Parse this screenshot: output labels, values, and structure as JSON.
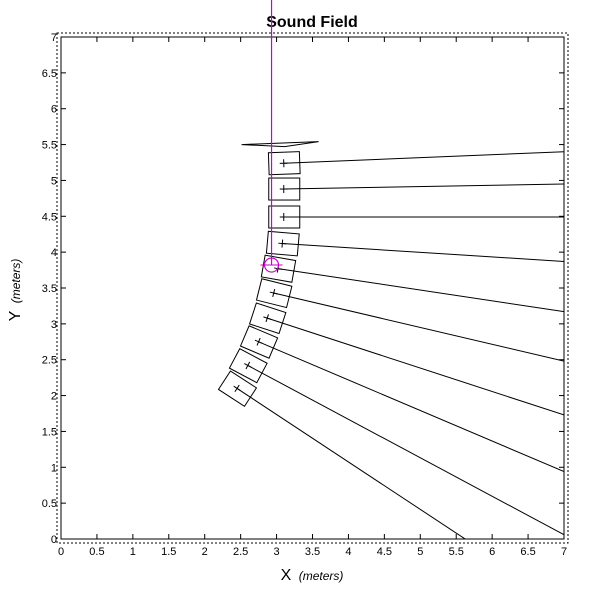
{
  "colors": {
    "background": "#ffffff",
    "axes": "#000000",
    "rays": "#000000",
    "cabinets": "#000000",
    "reference_line": "#cc00cc",
    "reference_marker": "#cc00cc"
  },
  "chart_data": {
    "type": "line",
    "title": "Sound Field",
    "xlabel": "X",
    "xlabel_unit": "(meters)",
    "ylabel": "Y",
    "ylabel_unit": "(meters)",
    "xlim": [
      0,
      7
    ],
    "ylim": [
      0,
      7
    ],
    "xticks": [
      "0",
      "0.5",
      "1",
      "1.5",
      "2",
      "2.5",
      "3",
      "3.5",
      "4",
      "4.5",
      "5",
      "5.5",
      "6",
      "6.5",
      "7"
    ],
    "yticks": [
      "0",
      "0.5",
      "1",
      "1.5",
      "2",
      "2.5",
      "3",
      "3.5",
      "4",
      "4.5",
      "5",
      "5.5",
      "6",
      "6.5",
      "7"
    ],
    "grid": false,
    "legend": "none",
    "array_elements": [
      {
        "x": 3.1,
        "y": 5.24,
        "angle_deg": 2
      },
      {
        "x": 3.1,
        "y": 4.88,
        "angle_deg": 0
      },
      {
        "x": 3.1,
        "y": 4.49,
        "angle_deg": 0
      },
      {
        "x": 3.08,
        "y": 4.12,
        "angle_deg": -5
      },
      {
        "x": 3.02,
        "y": 3.77,
        "angle_deg": -10
      },
      {
        "x": 2.96,
        "y": 3.43,
        "angle_deg": -14
      },
      {
        "x": 2.87,
        "y": 3.08,
        "angle_deg": -18
      },
      {
        "x": 2.75,
        "y": 2.75,
        "angle_deg": -23
      },
      {
        "x": 2.6,
        "y": 2.42,
        "angle_deg": -28
      },
      {
        "x": 2.45,
        "y": 2.1,
        "angle_deg": -33
      }
    ],
    "rays": [
      {
        "x0": 3.1,
        "y0": 5.24,
        "x1": 7.0,
        "y1": 5.4
      },
      {
        "x0": 3.1,
        "y0": 4.88,
        "x1": 7.0,
        "y1": 4.95
      },
      {
        "x0": 3.1,
        "y0": 4.49,
        "x1": 7.0,
        "y1": 4.49
      },
      {
        "x0": 3.08,
        "y0": 4.12,
        "x1": 7.0,
        "y1": 3.87
      },
      {
        "x0": 3.02,
        "y0": 3.77,
        "x1": 7.0,
        "y1": 3.17
      },
      {
        "x0": 2.96,
        "y0": 3.43,
        "x1": 7.0,
        "y1": 2.48
      },
      {
        "x0": 2.87,
        "y0": 3.08,
        "x1": 7.0,
        "y1": 1.73
      },
      {
        "x0": 2.75,
        "y0": 2.75,
        "x1": 7.0,
        "y1": 0.94
      },
      {
        "x0": 2.6,
        "y0": 2.42,
        "x1": 7.0,
        "y1": 0.06
      },
      {
        "x0": 2.45,
        "y0": 2.1,
        "x1": 5.7,
        "y1": -0.05
      }
    ],
    "rigging_frame": {
      "x": 3.0,
      "y": 5.5
    },
    "reference_line_x": 2.93,
    "reference_point": {
      "x": 2.93,
      "y": 3.82
    }
  }
}
